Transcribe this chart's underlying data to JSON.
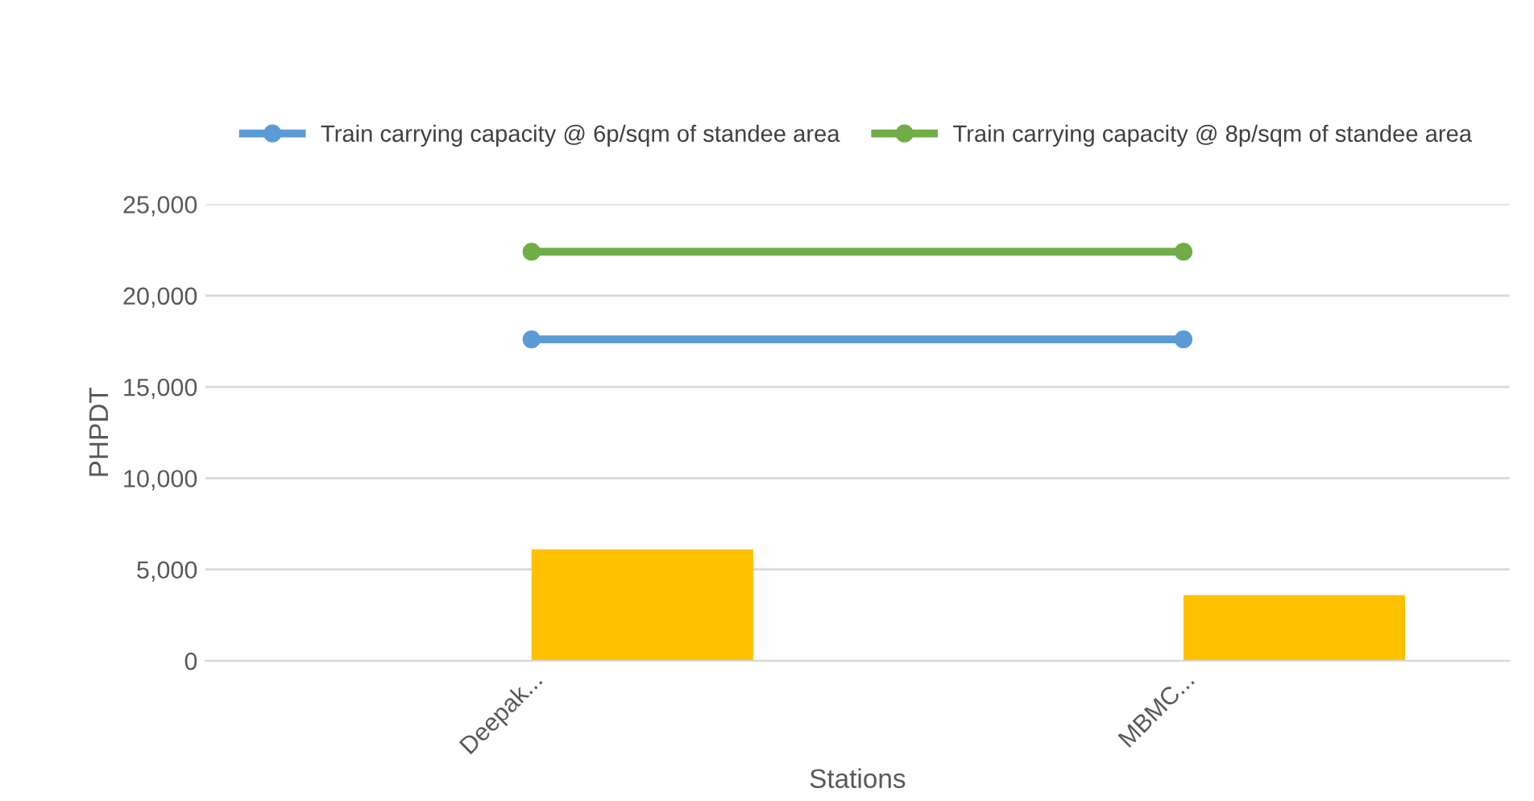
{
  "chart_data": {
    "type": "bar",
    "xlabel": "Stations",
    "ylabel": "PHPDT",
    "categories": [
      "Deepak...",
      "MBMC..."
    ],
    "series": [
      {
        "color": "#ffc000",
        "values": [
          6100,
          3600
        ]
      },
      {
        "type": "line",
        "name": "Train carrying capacity @ 6p/sqm of standee area",
        "color": "#5b9bd5",
        "values": [
          17600,
          17600
        ]
      },
      {
        "type": "line",
        "name": "Train carrying capacity @ 8p/sqm of standee area",
        "color": "#70ad47",
        "values": [
          22400,
          22400
        ]
      }
    ],
    "ylim": [
      0,
      25000
    ],
    "yticks": [
      {
        "value": 0,
        "label": "0"
      },
      {
        "value": 5000,
        "label": "5,000"
      },
      {
        "value": 10000,
        "label": "10,000"
      },
      {
        "value": 15000,
        "label": "15,000"
      },
      {
        "value": 20000,
        "label": "20,000"
      },
      {
        "value": 25000,
        "label": "25,000"
      }
    ],
    "grid": "y",
    "legend": "top",
    "marker": "circle",
    "line_style": "solid"
  }
}
